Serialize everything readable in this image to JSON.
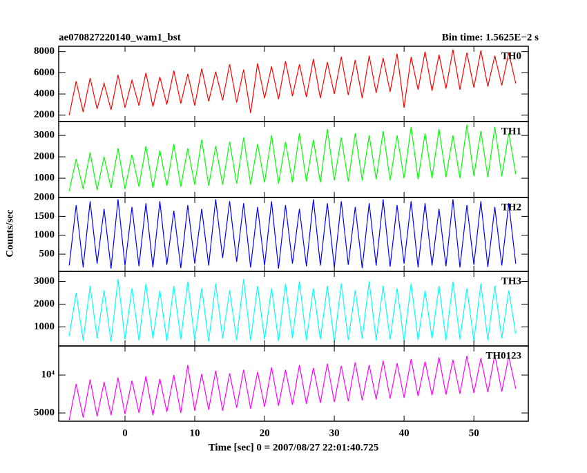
{
  "chart_data": [
    {
      "type": "line",
      "title": "ae070827220140_wam1_bst",
      "subtitle": "Bin time: 1.5625E−2 s",
      "x": [
        -8,
        -7,
        -6,
        -5,
        -4,
        -3,
        -2,
        -1,
        0,
        1,
        2,
        3,
        4,
        5,
        6,
        7,
        8,
        9,
        10,
        11,
        12,
        13,
        14,
        15,
        16,
        17,
        18,
        19,
        20,
        21,
        22,
        23,
        24,
        25,
        26,
        27,
        28,
        29,
        30,
        31,
        32,
        33,
        34,
        35,
        36,
        37,
        38,
        39,
        40,
        41,
        42,
        43,
        44,
        45,
        46,
        47,
        48,
        49,
        50,
        51,
        52,
        53,
        54,
        55,
        56
      ],
      "series": [
        {
          "name": "TH0",
          "color": "#ff0000",
          "values": [
            2000,
            5200,
            2300,
            5500,
            2600,
            5000,
            2500,
            5800,
            2700,
            5300,
            2900,
            6000,
            2800,
            5600,
            3000,
            6200,
            3100,
            5900,
            2900,
            6400,
            3300,
            6100,
            3400,
            6800,
            3200,
            6300,
            2200,
            6900,
            3600,
            6600,
            3500,
            7100,
            3800,
            6800,
            3700,
            7300,
            3600,
            7000,
            4000,
            7500,
            3900,
            7200,
            3600,
            7600,
            4100,
            7400,
            4200,
            7800,
            2700,
            7500,
            4400,
            8000,
            4300,
            7700,
            4500,
            8200,
            4400,
            7900,
            4600,
            8100,
            4700,
            7600,
            4800,
            7900,
            5000
          ]
        }
      ],
      "ylim": [
        1400,
        8500
      ],
      "yticks": [
        2000,
        4000,
        6000,
        8000
      ]
    },
    {
      "type": "line",
      "x": [
        -8,
        -7,
        -6,
        -5,
        -4,
        -3,
        -2,
        -1,
        0,
        1,
        2,
        3,
        4,
        5,
        6,
        7,
        8,
        9,
        10,
        11,
        12,
        13,
        14,
        15,
        16,
        17,
        18,
        19,
        20,
        21,
        22,
        23,
        24,
        25,
        26,
        27,
        28,
        29,
        30,
        31,
        32,
        33,
        34,
        35,
        36,
        37,
        38,
        39,
        40,
        41,
        42,
        43,
        44,
        45,
        46,
        47,
        48,
        49,
        50,
        51,
        52,
        53,
        54,
        55,
        56
      ],
      "series": [
        {
          "name": "TH1",
          "color": "#00ff00",
          "values": [
            400,
            1900,
            500,
            2200,
            450,
            2000,
            550,
            2400,
            500,
            2100,
            600,
            2500,
            550,
            2300,
            650,
            2600,
            600,
            2400,
            700,
            2800,
            650,
            2500,
            700,
            2700,
            750,
            2900,
            700,
            2600,
            800,
            3000,
            750,
            2700,
            800,
            3100,
            850,
            2800,
            800,
            3300,
            900,
            2900,
            850,
            3100,
            900,
            3000,
            950,
            3200,
            900,
            3000,
            1000,
            3400,
            950,
            3100,
            1000,
            3300,
            1050,
            3000,
            1000,
            3500,
            1100,
            3200,
            1050,
            3400,
            1100,
            3100,
            1200
          ]
        }
      ],
      "ylim": [
        100,
        3650
      ],
      "yticks": [
        1000,
        2000,
        3000
      ]
    },
    {
      "type": "line",
      "ylabel": "Counts/sec",
      "x": [
        -8,
        -7,
        -6,
        -5,
        -4,
        -3,
        -2,
        -1,
        0,
        1,
        2,
        3,
        4,
        5,
        6,
        7,
        8,
        9,
        10,
        11,
        12,
        13,
        14,
        15,
        16,
        17,
        18,
        19,
        20,
        21,
        22,
        23,
        24,
        25,
        26,
        27,
        28,
        29,
        30,
        31,
        32,
        33,
        34,
        35,
        36,
        37,
        38,
        39,
        40,
        41,
        42,
        43,
        44,
        45,
        46,
        47,
        48,
        49,
        50,
        51,
        52,
        53,
        54,
        55,
        56
      ],
      "series": [
        {
          "name": "TH2",
          "color": "#0000ff",
          "values": [
            200,
            1800,
            150,
            1900,
            250,
            1700,
            120,
            1950,
            200,
            1750,
            180,
            1850,
            150,
            1900,
            220,
            1650,
            130,
            1800,
            250,
            1700,
            200,
            1950,
            400,
            1900,
            300,
            1850,
            150,
            1750,
            200,
            1900,
            120,
            1800,
            250,
            1700,
            180,
            1950,
            200,
            1850,
            150,
            1900,
            220,
            1750,
            130,
            1850,
            200,
            1950,
            170,
            1800,
            250,
            1900,
            150,
            1850,
            200,
            1700,
            180,
            1950,
            150,
            1800,
            220,
            1900,
            160,
            1750,
            200,
            1850,
            250
          ]
        }
      ],
      "ylim": [
        45,
        2000
      ],
      "yticks": [
        500,
        1000,
        1500,
        2000
      ]
    },
    {
      "type": "line",
      "x": [
        -8,
        -7,
        -6,
        -5,
        -4,
        -3,
        -2,
        -1,
        0,
        1,
        2,
        3,
        4,
        5,
        6,
        7,
        8,
        9,
        10,
        11,
        12,
        13,
        14,
        15,
        16,
        17,
        18,
        19,
        20,
        21,
        22,
        23,
        24,
        25,
        26,
        27,
        28,
        29,
        30,
        31,
        32,
        33,
        34,
        35,
        36,
        37,
        38,
        39,
        40,
        41,
        42,
        43,
        44,
        45,
        46,
        47,
        48,
        49,
        50,
        51,
        52,
        53,
        54,
        55,
        56
      ],
      "series": [
        {
          "name": "TH3",
          "color": "#00ffff",
          "values": [
            600,
            2500,
            400,
            2800,
            500,
            2600,
            350,
            3100,
            450,
            2700,
            400,
            2900,
            500,
            2600,
            380,
            2800,
            450,
            3000,
            400,
            2700,
            350,
            2900,
            500,
            2600,
            420,
            3100,
            400,
            2800,
            450,
            2700,
            380,
            2900,
            500,
            3000,
            400,
            2700,
            450,
            2800,
            350,
            2900,
            420,
            2600,
            480,
            3000,
            400,
            2800,
            450,
            2700,
            380,
            2900,
            420,
            2600,
            500,
            2800,
            400,
            3000,
            450,
            2700,
            380,
            2900,
            420,
            2800,
            500,
            2600,
            700
          ]
        }
      ],
      "ylim": [
        160,
        3440
      ],
      "yticks": [
        1000,
        2000,
        3000
      ]
    },
    {
      "type": "line",
      "xlabel": "Time [sec] 0 = 2007/08/27 22:01:40.725",
      "x": [
        -8,
        -7,
        -6,
        -5,
        -4,
        -3,
        -2,
        -1,
        0,
        1,
        2,
        3,
        4,
        5,
        6,
        7,
        8,
        9,
        10,
        11,
        12,
        13,
        14,
        15,
        16,
        17,
        18,
        19,
        20,
        21,
        22,
        23,
        24,
        25,
        26,
        27,
        28,
        29,
        30,
        31,
        32,
        33,
        34,
        35,
        36,
        37,
        38,
        39,
        40,
        41,
        42,
        43,
        44,
        45,
        46,
        47,
        48,
        49,
        50,
        51,
        52,
        53,
        54,
        55,
        56
      ],
      "series": [
        {
          "name": "TH0123",
          "color": "#ff00ff",
          "values": [
            4400,
            8500,
            4600,
            9200,
            4700,
            8800,
            4800,
            9500,
            4900,
            9000,
            5000,
            9800,
            4800,
            9300,
            5100,
            10000,
            5000,
            12000,
            5200,
            10200,
            5300,
            10800,
            5200,
            10300,
            5500,
            11000,
            5400,
            10600,
            5600,
            11500,
            5700,
            11000,
            5800,
            12000,
            5900,
            11400,
            6000,
            12300,
            6100,
            11800,
            6200,
            12600,
            6300,
            12000,
            6400,
            13000,
            6500,
            12400,
            6600,
            13400,
            6800,
            12800,
            6900,
            13800,
            7000,
            13200,
            7100,
            14200,
            7200,
            13600,
            7300,
            14500,
            7400,
            14000,
            7800
          ]
        }
      ],
      "ylim": [
        4300,
        17000
      ],
      "log": true,
      "yticks": [
        5000,
        {
          "value": 10000,
          "label": "10⁴"
        }
      ],
      "xlim": [
        -9.5,
        57.8
      ],
      "xticks": [
        0,
        10,
        20,
        30,
        40,
        50
      ]
    }
  ]
}
